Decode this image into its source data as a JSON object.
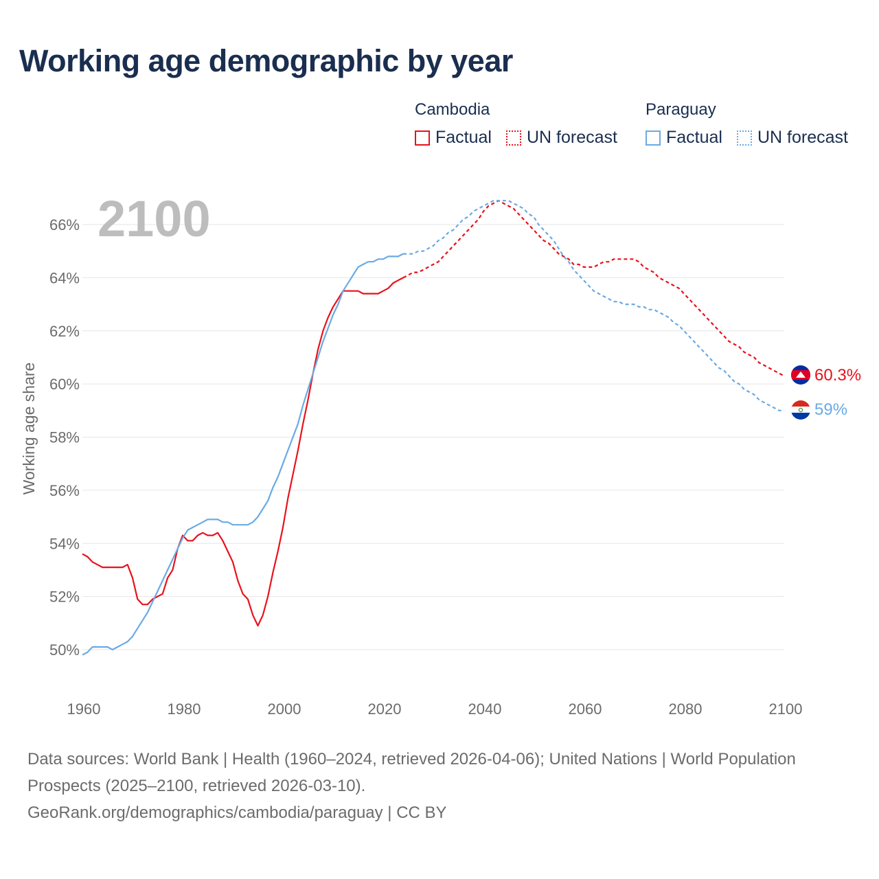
{
  "title": "Working age demographic by year",
  "legend": {
    "groups": [
      {
        "name": "Cambodia",
        "factual": "Factual",
        "forecast": "UN forecast",
        "color": "#e8111b"
      },
      {
        "name": "Paraguay",
        "factual": "Factual",
        "forecast": "UN forecast",
        "color": "#6aaae4"
      }
    ]
  },
  "year_watermark": "2100",
  "footer": {
    "sources": "Data sources: World Bank | Health (1960–2024, retrieved 2026-04-06); United Nations | World Population Prospects (2025–2100, retrieved 2026-03-10).",
    "link": "GeoRank.org/demographics/cambodia/paraguay | CC BY"
  },
  "chart_data": {
    "type": "line",
    "title": "Working age demographic by year",
    "xlabel": "",
    "ylabel": "Working age share",
    "xlim": [
      1960,
      2100
    ],
    "ylim": [
      48.5,
      67
    ],
    "x_ticks": [
      1960,
      1980,
      2000,
      2020,
      2040,
      2060,
      2080,
      2100
    ],
    "y_ticks": [
      50,
      52,
      54,
      56,
      58,
      60,
      62,
      64,
      66
    ],
    "y_tick_labels": [
      "50%",
      "52%",
      "54%",
      "56%",
      "58%",
      "60%",
      "62%",
      "64%",
      "66%"
    ],
    "x_tick_labels": [
      "1960",
      "1980",
      "2000",
      "2020",
      "2040",
      "2060",
      "2080",
      "2100"
    ],
    "factual_until": 2024,
    "series": [
      {
        "name": "Cambodia",
        "color": "#e8111b",
        "end_label": "60.3%",
        "points": [
          [
            1960,
            53.6
          ],
          [
            1961,
            53.5
          ],
          [
            1962,
            53.3
          ],
          [
            1963,
            53.2
          ],
          [
            1964,
            53.1
          ],
          [
            1965,
            53.1
          ],
          [
            1966,
            53.1
          ],
          [
            1967,
            53.1
          ],
          [
            1968,
            53.1
          ],
          [
            1969,
            53.2
          ],
          [
            1970,
            52.7
          ],
          [
            1971,
            51.9
          ],
          [
            1972,
            51.7
          ],
          [
            1973,
            51.7
          ],
          [
            1974,
            51.9
          ],
          [
            1975,
            52.0
          ],
          [
            1976,
            52.1
          ],
          [
            1977,
            52.7
          ],
          [
            1978,
            53.0
          ],
          [
            1979,
            53.8
          ],
          [
            1980,
            54.3
          ],
          [
            1981,
            54.1
          ],
          [
            1982,
            54.1
          ],
          [
            1983,
            54.3
          ],
          [
            1984,
            54.4
          ],
          [
            1985,
            54.3
          ],
          [
            1986,
            54.3
          ],
          [
            1987,
            54.4
          ],
          [
            1988,
            54.1
          ],
          [
            1989,
            53.7
          ],
          [
            1990,
            53.3
          ],
          [
            1991,
            52.6
          ],
          [
            1992,
            52.1
          ],
          [
            1993,
            51.9
          ],
          [
            1994,
            51.3
          ],
          [
            1995,
            50.9
          ],
          [
            1996,
            51.3
          ],
          [
            1997,
            52.0
          ],
          [
            1998,
            52.9
          ],
          [
            1999,
            53.7
          ],
          [
            2000,
            54.6
          ],
          [
            2001,
            55.7
          ],
          [
            2002,
            56.6
          ],
          [
            2003,
            57.5
          ],
          [
            2004,
            58.5
          ],
          [
            2005,
            59.4
          ],
          [
            2006,
            60.4
          ],
          [
            2007,
            61.3
          ],
          [
            2008,
            62.0
          ],
          [
            2009,
            62.5
          ],
          [
            2010,
            62.9
          ],
          [
            2011,
            63.2
          ],
          [
            2012,
            63.5
          ],
          [
            2013,
            63.5
          ],
          [
            2014,
            63.5
          ],
          [
            2015,
            63.5
          ],
          [
            2016,
            63.4
          ],
          [
            2017,
            63.4
          ],
          [
            2018,
            63.4
          ],
          [
            2019,
            63.4
          ],
          [
            2020,
            63.5
          ],
          [
            2021,
            63.6
          ],
          [
            2022,
            63.8
          ],
          [
            2023,
            63.9
          ],
          [
            2024,
            64.0
          ],
          [
            2025,
            64.1
          ],
          [
            2026,
            64.2
          ],
          [
            2027,
            64.2
          ],
          [
            2028,
            64.3
          ],
          [
            2029,
            64.4
          ],
          [
            2030,
            64.5
          ],
          [
            2031,
            64.6
          ],
          [
            2032,
            64.8
          ],
          [
            2033,
            65.0
          ],
          [
            2034,
            65.2
          ],
          [
            2035,
            65.4
          ],
          [
            2036,
            65.6
          ],
          [
            2037,
            65.8
          ],
          [
            2038,
            66.0
          ],
          [
            2039,
            66.2
          ],
          [
            2040,
            66.5
          ],
          [
            2041,
            66.7
          ],
          [
            2042,
            66.8
          ],
          [
            2043,
            66.9
          ],
          [
            2044,
            66.8
          ],
          [
            2045,
            66.7
          ],
          [
            2046,
            66.6
          ],
          [
            2047,
            66.4
          ],
          [
            2048,
            66.2
          ],
          [
            2049,
            66.0
          ],
          [
            2050,
            65.8
          ],
          [
            2051,
            65.6
          ],
          [
            2052,
            65.4
          ],
          [
            2053,
            65.3
          ],
          [
            2054,
            65.1
          ],
          [
            2055,
            64.9
          ],
          [
            2056,
            64.8
          ],
          [
            2057,
            64.7
          ],
          [
            2058,
            64.5
          ],
          [
            2059,
            64.5
          ],
          [
            2060,
            64.4
          ],
          [
            2061,
            64.4
          ],
          [
            2062,
            64.4
          ],
          [
            2063,
            64.5
          ],
          [
            2064,
            64.6
          ],
          [
            2065,
            64.6
          ],
          [
            2066,
            64.7
          ],
          [
            2067,
            64.7
          ],
          [
            2068,
            64.7
          ],
          [
            2069,
            64.7
          ],
          [
            2070,
            64.7
          ],
          [
            2071,
            64.6
          ],
          [
            2072,
            64.4
          ],
          [
            2073,
            64.3
          ],
          [
            2074,
            64.2
          ],
          [
            2075,
            64.0
          ],
          [
            2076,
            63.9
          ],
          [
            2077,
            63.8
          ],
          [
            2078,
            63.7
          ],
          [
            2079,
            63.6
          ],
          [
            2080,
            63.4
          ],
          [
            2081,
            63.2
          ],
          [
            2082,
            63.0
          ],
          [
            2083,
            62.8
          ],
          [
            2084,
            62.6
          ],
          [
            2085,
            62.4
          ],
          [
            2086,
            62.2
          ],
          [
            2087,
            62.0
          ],
          [
            2088,
            61.8
          ],
          [
            2089,
            61.6
          ],
          [
            2090,
            61.5
          ],
          [
            2091,
            61.4
          ],
          [
            2092,
            61.2
          ],
          [
            2093,
            61.1
          ],
          [
            2094,
            61.0
          ],
          [
            2095,
            60.8
          ],
          [
            2096,
            60.7
          ],
          [
            2097,
            60.6
          ],
          [
            2098,
            60.5
          ],
          [
            2099,
            60.4
          ],
          [
            2100,
            60.3
          ]
        ]
      },
      {
        "name": "Paraguay",
        "color": "#6aaae4",
        "end_label": "59%",
        "points": [
          [
            1960,
            49.8
          ],
          [
            1961,
            49.9
          ],
          [
            1962,
            50.1
          ],
          [
            1963,
            50.1
          ],
          [
            1964,
            50.1
          ],
          [
            1965,
            50.1
          ],
          [
            1966,
            50.0
          ],
          [
            1967,
            50.1
          ],
          [
            1968,
            50.2
          ],
          [
            1969,
            50.3
          ],
          [
            1970,
            50.5
          ],
          [
            1971,
            50.8
          ],
          [
            1972,
            51.1
          ],
          [
            1973,
            51.4
          ],
          [
            1974,
            51.8
          ],
          [
            1975,
            52.2
          ],
          [
            1976,
            52.6
          ],
          [
            1977,
            53.0
          ],
          [
            1978,
            53.4
          ],
          [
            1979,
            53.8
          ],
          [
            1980,
            54.2
          ],
          [
            1981,
            54.5
          ],
          [
            1982,
            54.6
          ],
          [
            1983,
            54.7
          ],
          [
            1984,
            54.8
          ],
          [
            1985,
            54.9
          ],
          [
            1986,
            54.9
          ],
          [
            1987,
            54.9
          ],
          [
            1988,
            54.8
          ],
          [
            1989,
            54.8
          ],
          [
            1990,
            54.7
          ],
          [
            1991,
            54.7
          ],
          [
            1992,
            54.7
          ],
          [
            1993,
            54.7
          ],
          [
            1994,
            54.8
          ],
          [
            1995,
            55.0
          ],
          [
            1996,
            55.3
          ],
          [
            1997,
            55.6
          ],
          [
            1998,
            56.1
          ],
          [
            1999,
            56.5
          ],
          [
            2000,
            57.0
          ],
          [
            2001,
            57.5
          ],
          [
            2002,
            58.0
          ],
          [
            2003,
            58.5
          ],
          [
            2004,
            59.2
          ],
          [
            2005,
            59.8
          ],
          [
            2006,
            60.4
          ],
          [
            2007,
            61.0
          ],
          [
            2008,
            61.6
          ],
          [
            2009,
            62.1
          ],
          [
            2010,
            62.6
          ],
          [
            2011,
            63.0
          ],
          [
            2012,
            63.5
          ],
          [
            2013,
            63.8
          ],
          [
            2014,
            64.1
          ],
          [
            2015,
            64.4
          ],
          [
            2016,
            64.5
          ],
          [
            2017,
            64.6
          ],
          [
            2018,
            64.6
          ],
          [
            2019,
            64.7
          ],
          [
            2020,
            64.7
          ],
          [
            2021,
            64.8
          ],
          [
            2022,
            64.8
          ],
          [
            2023,
            64.8
          ],
          [
            2024,
            64.9
          ],
          [
            2025,
            64.9
          ],
          [
            2026,
            64.9
          ],
          [
            2027,
            65.0
          ],
          [
            2028,
            65.0
          ],
          [
            2029,
            65.1
          ],
          [
            2030,
            65.2
          ],
          [
            2031,
            65.4
          ],
          [
            2032,
            65.5
          ],
          [
            2033,
            65.7
          ],
          [
            2034,
            65.8
          ],
          [
            2035,
            66.0
          ],
          [
            2036,
            66.2
          ],
          [
            2037,
            66.3
          ],
          [
            2038,
            66.5
          ],
          [
            2039,
            66.6
          ],
          [
            2040,
            66.7
          ],
          [
            2041,
            66.8
          ],
          [
            2042,
            66.9
          ],
          [
            2043,
            66.9
          ],
          [
            2044,
            66.9
          ],
          [
            2045,
            66.9
          ],
          [
            2046,
            66.8
          ],
          [
            2047,
            66.7
          ],
          [
            2048,
            66.6
          ],
          [
            2049,
            66.4
          ],
          [
            2050,
            66.3
          ],
          [
            2051,
            66.0
          ],
          [
            2052,
            65.8
          ],
          [
            2053,
            65.6
          ],
          [
            2054,
            65.4
          ],
          [
            2055,
            65.1
          ],
          [
            2056,
            64.8
          ],
          [
            2057,
            64.6
          ],
          [
            2058,
            64.3
          ],
          [
            2059,
            64.1
          ],
          [
            2060,
            63.9
          ],
          [
            2061,
            63.7
          ],
          [
            2062,
            63.5
          ],
          [
            2063,
            63.4
          ],
          [
            2064,
            63.3
          ],
          [
            2065,
            63.2
          ],
          [
            2066,
            63.1
          ],
          [
            2067,
            63.1
          ],
          [
            2068,
            63.0
          ],
          [
            2069,
            63.0
          ],
          [
            2070,
            63.0
          ],
          [
            2071,
            62.9
          ],
          [
            2072,
            62.9
          ],
          [
            2073,
            62.8
          ],
          [
            2074,
            62.8
          ],
          [
            2075,
            62.7
          ],
          [
            2076,
            62.6
          ],
          [
            2077,
            62.5
          ],
          [
            2078,
            62.3
          ],
          [
            2079,
            62.2
          ],
          [
            2080,
            62.0
          ],
          [
            2081,
            61.8
          ],
          [
            2082,
            61.6
          ],
          [
            2083,
            61.4
          ],
          [
            2084,
            61.2
          ],
          [
            2085,
            61.0
          ],
          [
            2086,
            60.8
          ],
          [
            2087,
            60.6
          ],
          [
            2088,
            60.5
          ],
          [
            2089,
            60.3
          ],
          [
            2090,
            60.1
          ],
          [
            2091,
            60.0
          ],
          [
            2092,
            59.8
          ],
          [
            2093,
            59.7
          ],
          [
            2094,
            59.6
          ],
          [
            2095,
            59.4
          ],
          [
            2096,
            59.3
          ],
          [
            2097,
            59.2
          ],
          [
            2098,
            59.1
          ],
          [
            2099,
            59.0
          ],
          [
            2100,
            59.0
          ]
        ]
      }
    ]
  }
}
